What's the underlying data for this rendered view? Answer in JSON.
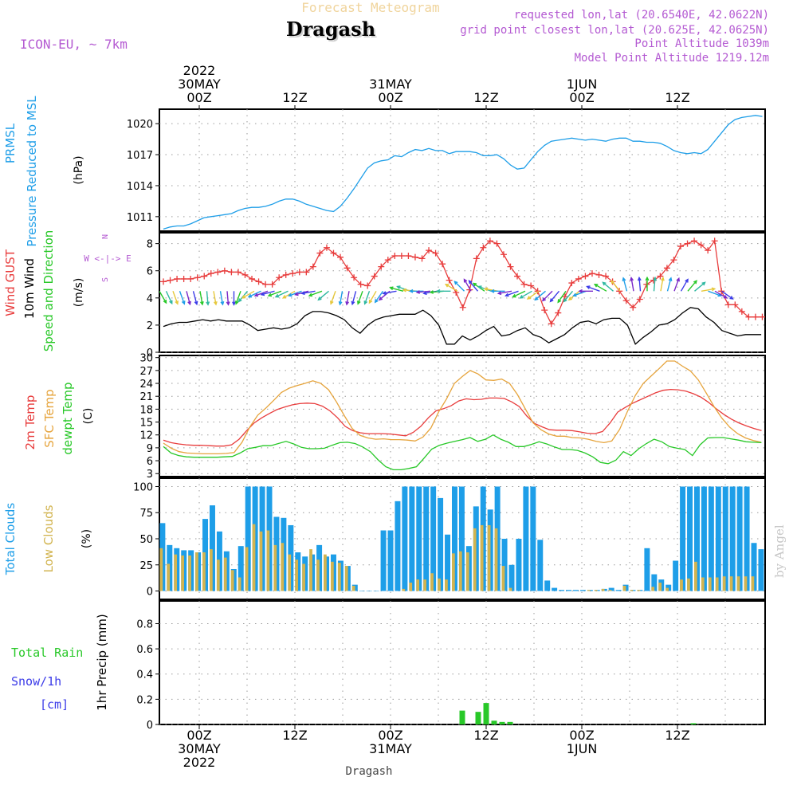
{
  "header": {
    "product": "Forecast Meteogram",
    "location": "Dragash",
    "model": "ICON-EU, ~ 7km",
    "requested": "requested lon,lat (20.6540E, 42.0622N)",
    "grid_point": "grid point closest lon,lat (20.625E, 42.0625N)",
    "point_alt": "Point Altitude 1039m",
    "model_alt": "Model Point Altitude 1219.12m",
    "footer": "Dragash",
    "credit": "by Angel"
  },
  "time_axis": {
    "top_labels": [
      {
        "h": 0,
        "lines": [
          "2022",
          "30MAY",
          "00Z"
        ]
      },
      {
        "h": 12,
        "lines": [
          "12Z"
        ]
      },
      {
        "h": 24,
        "lines": [
          "31MAY",
          "00Z"
        ]
      },
      {
        "h": 36,
        "lines": [
          "12Z"
        ]
      },
      {
        "h": 48,
        "lines": [
          "1JUN",
          "00Z"
        ]
      },
      {
        "h": 60,
        "lines": [
          "12Z"
        ]
      }
    ],
    "bottom_labels": [
      {
        "h": 0,
        "lines": [
          "00Z",
          "30MAY",
          "2022"
        ]
      },
      {
        "h": 12,
        "lines": [
          "12Z"
        ]
      },
      {
        "h": 24,
        "lines": [
          "00Z",
          "31MAY"
        ]
      },
      {
        "h": 36,
        "lines": [
          "12Z"
        ]
      },
      {
        "h": 48,
        "lines": [
          "00Z",
          "1JUN"
        ]
      },
      {
        "h": 60,
        "lines": [
          "12Z"
        ]
      }
    ],
    "range_hours": [
      -5,
      71
    ]
  },
  "colors": {
    "prmsl": "#1e9ee8",
    "gust": "#e83c3c",
    "wind": "#000000",
    "t2m": "#e83c3c",
    "sfc": "#e6a43c",
    "dew": "#28c828",
    "total_clouds": "#1e9ee8",
    "low_clouds": "#d2b450",
    "rain": "#28c828",
    "snow": "#3c3ce8",
    "header_orange": "#f0d49c",
    "header_purple": "#b45ad2"
  },
  "chart_data": [
    {
      "name": "pressure",
      "type": "line",
      "ylabel_lines": [
        "PRMSL",
        "Pressure Reduced to MSL"
      ],
      "unit": "(hPa)",
      "ylim": [
        1009.6,
        1021.4
      ],
      "yticks": [
        1011,
        1014,
        1017,
        1020
      ],
      "series": [
        {
          "name": "PRMSL",
          "color": "#1e9ee8",
          "values": [
            1009.8,
            1010.0,
            1010.1,
            1010.1,
            1010.3,
            1010.6,
            1010.9,
            1011.0,
            1011.1,
            1011.2,
            1011.3,
            1011.6,
            1011.8,
            1011.9,
            1011.9,
            1012.0,
            1012.2,
            1012.5,
            1012.7,
            1012.7,
            1012.5,
            1012.2,
            1012.0,
            1011.8,
            1011.6,
            1011.5,
            1012.0,
            1012.8,
            1013.7,
            1014.7,
            1015.7,
            1016.2,
            1016.4,
            1016.5,
            1016.9,
            1016.8,
            1017.2,
            1017.5,
            1017.4,
            1017.6,
            1017.4,
            1017.4,
            1017.1,
            1017.3,
            1017.3,
            1017.3,
            1017.2,
            1016.9,
            1016.9,
            1017.0,
            1016.6,
            1016.0,
            1015.6,
            1015.7,
            1016.5,
            1017.3,
            1017.9,
            1018.3,
            1018.4,
            1018.5,
            1018.6,
            1018.5,
            1018.4,
            1018.5,
            1018.4,
            1018.3,
            1018.5,
            1018.6,
            1018.6,
            1018.3,
            1018.3,
            1018.2,
            1018.2,
            1018.1,
            1017.8,
            1017.4,
            1017.2,
            1017.1,
            1017.2,
            1017.1,
            1017.5,
            1018.3,
            1019.1,
            1019.9,
            1020.4,
            1020.6,
            1020.7,
            1020.8,
            1020.7
          ]
        }
      ]
    },
    {
      "name": "wind",
      "type": "line",
      "ylabel_lines": [
        "Wind GUST",
        "10m Wind",
        "Speed and Direction"
      ],
      "unit": "(m/s)",
      "compass": [
        "N",
        "W <-|-> E",
        "S"
      ],
      "ylim": [
        0,
        8.8
      ],
      "yticks": [
        0,
        2,
        4,
        6,
        8
      ],
      "series": [
        {
          "name": "Wind GUST",
          "color": "#e83c3c",
          "marker": "+",
          "values": [
            5.2,
            5.3,
            5.4,
            5.4,
            5.4,
            5.5,
            5.6,
            5.8,
            5.9,
            6.0,
            5.9,
            5.9,
            5.7,
            5.4,
            5.2,
            5.0,
            5.0,
            5.5,
            5.7,
            5.8,
            5.9,
            5.9,
            6.3,
            7.3,
            7.7,
            7.3,
            7.0,
            6.2,
            5.5,
            5.0,
            4.9,
            5.6,
            6.3,
            6.8,
            7.1,
            7.1,
            7.1,
            7.0,
            6.9,
            7.5,
            7.3,
            6.5,
            5.3,
            4.4,
            3.3,
            4.6,
            6.9,
            7.7,
            8.2,
            8.0,
            7.2,
            6.3,
            5.6,
            5.0,
            4.9,
            4.5,
            3.1,
            2.1,
            2.9,
            4.1,
            5.1,
            5.4,
            5.6,
            5.8,
            5.7,
            5.6,
            5.2,
            4.5,
            3.8,
            3.3,
            3.9,
            5.0,
            5.3,
            5.6,
            6.2,
            6.8,
            7.8,
            8.0,
            8.2,
            7.9,
            7.5,
            8.2,
            4.5,
            3.5,
            3.5,
            3.0,
            2.6,
            2.6,
            2.6
          ]
        },
        {
          "name": "10m Wind",
          "color": "#000000",
          "values": [
            1.9,
            2.1,
            2.2,
            2.2,
            2.3,
            2.4,
            2.3,
            2.4,
            2.3,
            2.3,
            2.3,
            2.0,
            1.6,
            1.7,
            1.8,
            1.7,
            1.8,
            2.1,
            2.7,
            3.0,
            3.0,
            2.9,
            2.7,
            2.4,
            1.8,
            1.4,
            2.0,
            2.4,
            2.6,
            2.7,
            2.8,
            2.8,
            2.8,
            3.1,
            2.7,
            2.0,
            0.6,
            0.6,
            1.2,
            0.9,
            1.2,
            1.6,
            1.9,
            1.2,
            1.3,
            1.6,
            1.8,
            1.3,
            1.1,
            0.7,
            1.0,
            1.3,
            1.8,
            2.2,
            2.3,
            2.1,
            2.4,
            2.5,
            2.5,
            2.0,
            0.6,
            1.1,
            1.5,
            2.0,
            2.1,
            2.4,
            2.9,
            3.3,
            3.2,
            2.6,
            2.2,
            1.6,
            1.4,
            1.2,
            1.3,
            1.3,
            1.3
          ]
        },
        {
          "name": "Direction",
          "color": "#888888",
          "arrow_colors": [
            "#28c828",
            "#2eb8a0",
            "#e6c83c",
            "#1e9ee8",
            "#7a28c8",
            "#3c3ce8"
          ],
          "values": [
            150,
            155,
            160,
            160,
            165,
            165,
            170,
            175,
            170,
            170,
            175,
            180,
            200,
            220,
            240,
            245,
            250,
            255,
            250,
            245,
            240,
            250,
            255,
            260,
            250,
            230,
            200,
            190,
            190,
            195,
            200,
            200,
            210,
            215,
            230,
            260,
            285,
            290,
            275,
            270,
            265,
            260,
            265,
            270,
            300,
            315,
            330,
            320,
            305,
            290,
            280,
            270,
            260,
            250,
            245,
            240,
            235,
            230,
            225,
            220,
            215,
            220,
            230,
            250,
            270,
            290,
            300,
            310,
            320,
            345,
            350,
            355,
            0,
            5,
            10,
            15,
            20,
            30,
            40,
            50,
            80,
            110,
            120,
            125
          ]
        }
      ]
    },
    {
      "name": "temperature",
      "type": "line",
      "ylabel_lines": [
        "2m Temp",
        "SFC Temp",
        "dewpt Temp"
      ],
      "unit": "(C)",
      "ylim": [
        2.3,
        30.5
      ],
      "yticks": [
        3,
        6,
        9,
        12,
        15,
        18,
        21,
        24,
        27,
        30
      ],
      "series": [
        {
          "name": "2m Temp",
          "color": "#e83c3c",
          "values": [
            10.8,
            10.2,
            9.9,
            9.7,
            9.6,
            9.6,
            9.5,
            9.4,
            9.4,
            9.7,
            11.0,
            13.0,
            14.8,
            16.0,
            17.0,
            17.9,
            18.5,
            19.0,
            19.3,
            19.4,
            19.3,
            18.7,
            17.6,
            16.0,
            14.0,
            13.0,
            12.5,
            12.3,
            12.3,
            12.3,
            12.2,
            12.0,
            11.8,
            12.6,
            14.0,
            16.0,
            17.6,
            18.1,
            18.8,
            19.9,
            20.4,
            20.2,
            20.3,
            20.6,
            20.6,
            20.5,
            19.7,
            18.6,
            16.4,
            14.7,
            13.9,
            13.2,
            13.1,
            13.1,
            13.0,
            12.7,
            12.4,
            12.3,
            12.8,
            14.8,
            17.3,
            18.4,
            19.4,
            20.2,
            21.0,
            21.8,
            22.4,
            22.6,
            22.5,
            22.2,
            21.6,
            20.8,
            19.6,
            18.1,
            16.8,
            15.7,
            14.8,
            14.1,
            13.5,
            13.0
          ]
        },
        {
          "name": "SFC Temp",
          "color": "#e6a43c",
          "values": [
            10.1,
            8.9,
            8.1,
            7.8,
            7.7,
            7.6,
            7.6,
            7.6,
            7.7,
            7.9,
            10.3,
            13.9,
            16.6,
            18.2,
            20.0,
            21.9,
            22.9,
            23.5,
            24.0,
            24.6,
            24.0,
            22.5,
            19.7,
            16.5,
            13.5,
            11.9,
            11.3,
            11.0,
            11.1,
            10.9,
            10.9,
            10.8,
            10.6,
            11.5,
            13.6,
            17.4,
            20.4,
            24.0,
            25.6,
            27.0,
            26.2,
            24.8,
            24.7,
            25.0,
            24.0,
            21.4,
            18.1,
            14.8,
            13.2,
            12.2,
            11.7,
            11.7,
            11.4,
            11.3,
            11.0,
            10.5,
            10.2,
            10.6,
            13.3,
            17.5,
            21.2,
            24.0,
            25.7,
            27.4,
            29.2,
            29.2,
            28.0,
            26.9,
            24.8,
            21.8,
            18.6,
            15.9,
            13.8,
            12.3,
            11.3,
            10.7,
            10.3
          ]
        },
        {
          "name": "dewpt Temp",
          "color": "#28c828",
          "values": [
            9.3,
            7.8,
            7.2,
            6.9,
            6.8,
            6.8,
            6.8,
            6.8,
            6.9,
            7.0,
            7.8,
            8.8,
            9.1,
            9.5,
            9.5,
            10.0,
            10.5,
            9.9,
            9.1,
            8.8,
            8.8,
            8.9,
            9.6,
            10.2,
            10.3,
            10.0,
            9.2,
            8.1,
            6.2,
            4.6,
            3.9,
            3.9,
            4.2,
            4.6,
            6.6,
            8.7,
            9.6,
            10.1,
            10.5,
            10.9,
            11.4,
            10.5,
            11.0,
            12.0,
            11.0,
            10.3,
            9.3,
            9.3,
            9.8,
            10.4,
            9.9,
            9.2,
            8.6,
            8.6,
            8.4,
            7.8,
            6.9,
            5.6,
            5.3,
            6.1,
            8.1,
            7.2,
            8.8,
            10.0,
            11.0,
            10.4,
            9.3,
            8.9,
            8.6,
            7.2,
            9.7,
            11.3,
            11.4,
            11.4,
            11.1,
            10.8,
            10.4,
            10.3,
            10.2
          ]
        }
      ]
    },
    {
      "name": "clouds",
      "type": "bar",
      "ylabel_lines": [
        "Total Clouds",
        "Low Clouds"
      ],
      "unit": "(%)",
      "ylim": [
        -8,
        108
      ],
      "yticks": [
        0,
        25,
        50,
        75,
        100
      ],
      "series": [
        {
          "name": "Total Clouds",
          "color": "#1e9ee8",
          "values": [
            65,
            44,
            41,
            39,
            39,
            37,
            69,
            82,
            57,
            38,
            21,
            43,
            100,
            100,
            100,
            100,
            71,
            70,
            63,
            37,
            33,
            35,
            44,
            33,
            35,
            29,
            24,
            6,
            0,
            0,
            0,
            58,
            58,
            86,
            100,
            100,
            100,
            100,
            100,
            89,
            54,
            100,
            100,
            43,
            81,
            100,
            78,
            100,
            50,
            25,
            50,
            100,
            100,
            49,
            10,
            3,
            1,
            1,
            1,
            1,
            1,
            1,
            2,
            3,
            1,
            6,
            1,
            1,
            41,
            16,
            11,
            6,
            29,
            100,
            100,
            100,
            100,
            100,
            100,
            100,
            100,
            100,
            100,
            46,
            40
          ]
        },
        {
          "name": "Low Clouds",
          "color": "#d2b450",
          "values": [
            41,
            26,
            35,
            34,
            34,
            37,
            37,
            40,
            30,
            32,
            20,
            13,
            42,
            64,
            57,
            58,
            44,
            46,
            35,
            30,
            26,
            40,
            30,
            35,
            28,
            27,
            24,
            5,
            0,
            0,
            0,
            0,
            0,
            0,
            2,
            8,
            11,
            11,
            17,
            12,
            11,
            36,
            38,
            37,
            60,
            63,
            63,
            60,
            24,
            3,
            0,
            0,
            0,
            0,
            0,
            0,
            0,
            0,
            0,
            0,
            1,
            1,
            2,
            1,
            0,
            5,
            1,
            1,
            0,
            4,
            8,
            3,
            0,
            11,
            12,
            28,
            13,
            13,
            13,
            14,
            14,
            14,
            14,
            14
          ]
        }
      ]
    },
    {
      "name": "precip",
      "type": "bar",
      "ylabel_lines": [
        "Total Rain",
        "Snow/1h",
        "[cm]"
      ],
      "unit": "1hr Precip (mm)",
      "ylim": [
        0,
        0.98
      ],
      "yticks": [
        0,
        0.2,
        0.4,
        0.6,
        0.8
      ],
      "series": [
        {
          "name": "Total Rain",
          "color": "#28c828",
          "values": {
            "h": [
              33,
              35,
              36,
              37,
              38,
              39,
              62
            ],
            "mm": [
              0.11,
              0.1,
              0.17,
              0.03,
              0.02,
              0.02,
              0.01
            ]
          }
        }
      ]
    }
  ]
}
